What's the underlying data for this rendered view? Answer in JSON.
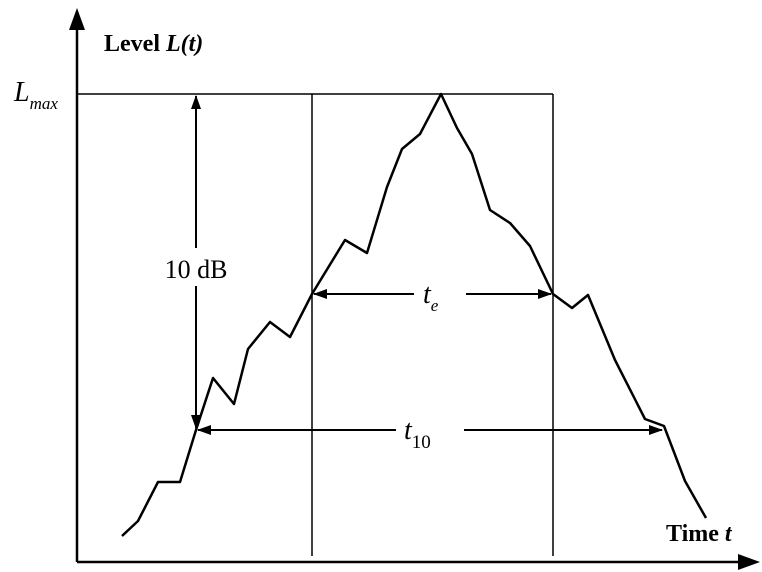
{
  "axes": {
    "y_label_text": "Level ",
    "y_label_var": "L(t)",
    "x_label_text": "Time ",
    "x_label_var": "t"
  },
  "labels": {
    "lmax_main": "L",
    "lmax_sub": "max",
    "drop": "10 dB",
    "te_main": "t",
    "te_sub": "e",
    "t10_main": "t",
    "t10_sub": "10"
  }
}
